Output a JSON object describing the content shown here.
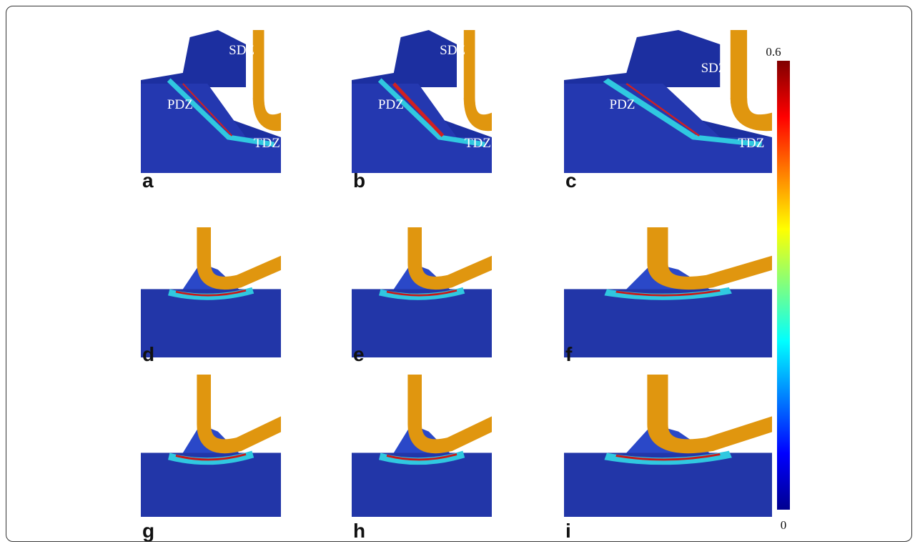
{
  "panels": [
    {
      "label": "a",
      "zones": [
        "SDZ",
        "PDZ",
        "TDZ"
      ]
    },
    {
      "label": "b",
      "zones": [
        "SDZ",
        "PDZ",
        "TDZ"
      ]
    },
    {
      "label": "c",
      "zones": [
        "SDZ",
        "PDZ",
        "TDZ"
      ]
    },
    {
      "label": "d",
      "zones": []
    },
    {
      "label": "e",
      "zones": []
    },
    {
      "label": "f",
      "zones": []
    },
    {
      "label": "g",
      "zones": []
    },
    {
      "label": "h",
      "zones": []
    },
    {
      "label": "i",
      "zones": []
    }
  ],
  "colorbar": {
    "max": 0.6,
    "min": 0
  }
}
